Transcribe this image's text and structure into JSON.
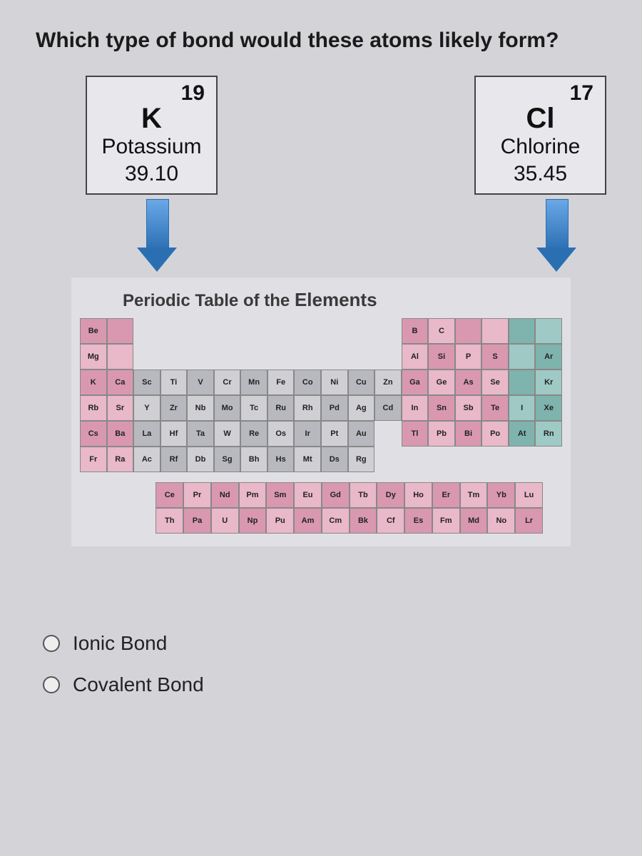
{
  "question": "Which type of bond would these atoms likely form?",
  "elements": {
    "left": {
      "atomic_number": "19",
      "symbol": "K",
      "name": "Potassium",
      "mass": "39.10"
    },
    "right": {
      "atomic_number": "17",
      "symbol": "Cl",
      "name": "Chlorine",
      "mass": "35.45"
    }
  },
  "periodic_table": {
    "title_prefix": "Periodic Table of the ",
    "title_emphasis": "Elements",
    "colors": {
      "pink": "#e9b8c9",
      "dpink": "#d998b0",
      "gray": "#cfcfd4",
      "dgray": "#b8b8bf",
      "teal": "#9ec9c4",
      "dteal": "#7fb3ad"
    },
    "row2": [
      "Be",
      "",
      "",
      "",
      "",
      "",
      "",
      "",
      "",
      "",
      "",
      "",
      "B",
      "C",
      "",
      "",
      "",
      ""
    ],
    "row3": [
      "Mg",
      "",
      "",
      "",
      "",
      "",
      "",
      "",
      "",
      "",
      "",
      "",
      "Al",
      "Si",
      "P",
      "S",
      "",
      "Ar"
    ],
    "row4": [
      "K",
      "Ca",
      "Sc",
      "Ti",
      "V",
      "Cr",
      "Mn",
      "Fe",
      "Co",
      "Ni",
      "Cu",
      "Zn",
      "Ga",
      "Ge",
      "As",
      "Se",
      "",
      "Kr"
    ],
    "row5": [
      "Rb",
      "Sr",
      "Y",
      "Zr",
      "Nb",
      "Mo",
      "Tc",
      "Ru",
      "Rh",
      "Pd",
      "Ag",
      "Cd",
      "In",
      "Sn",
      "Sb",
      "Te",
      "I",
      "Xe"
    ],
    "row6": [
      "Cs",
      "Ba",
      "La",
      "Hf",
      "Ta",
      "W",
      "Re",
      "Os",
      "Ir",
      "Pt",
      "Au",
      "",
      "Tl",
      "Pb",
      "Bi",
      "Po",
      "At",
      "Rn"
    ],
    "row7": [
      "Fr",
      "Ra",
      "Ac",
      "Rf",
      "Db",
      "Sg",
      "Bh",
      "Hs",
      "Mt",
      "Ds",
      "Rg",
      "",
      "",
      "",
      "",
      "",
      "",
      ""
    ],
    "lanth": [
      "Ce",
      "Pr",
      "Nd",
      "Pm",
      "Sm",
      "Eu",
      "Gd",
      "Tb",
      "Dy",
      "Ho",
      "Er",
      "Tm",
      "Yb",
      "Lu"
    ],
    "act": [
      "Th",
      "Pa",
      "U",
      "Np",
      "Pu",
      "Am",
      "Cm",
      "Bk",
      "Cf",
      "Es",
      "Fm",
      "Md",
      "No",
      "Lr"
    ]
  },
  "options": [
    {
      "id": "ionic",
      "label": "Ionic Bond"
    },
    {
      "id": "covalent",
      "label": "Covalent Bond"
    }
  ],
  "style": {
    "arrow_color": "#2b6fb3",
    "card_border": "#444444",
    "background": "#d4d4d8"
  }
}
